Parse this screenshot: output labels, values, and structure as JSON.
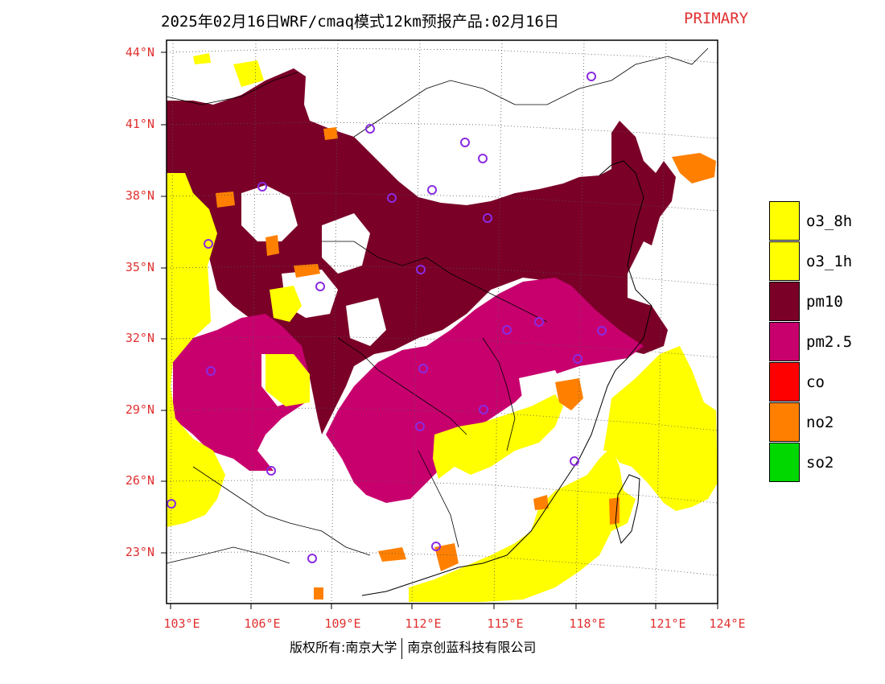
{
  "header": {
    "title": "2025年02月16日WRF/cmaq模式12km预报产品:02月16日",
    "tag": "PRIMARY"
  },
  "axes": {
    "lat_labels": [
      "44°N",
      "41°N",
      "38°N",
      "35°N",
      "32°N",
      "29°N",
      "26°N",
      "23°N"
    ],
    "lon_labels": [
      "103°E",
      "106°E",
      "109°E",
      "112°E",
      "115°E",
      "118°E",
      "121°E",
      "124°E"
    ]
  },
  "legend": {
    "items": [
      {
        "label": "o3_8h",
        "color": "#ffff00"
      },
      {
        "label": "o3_1h",
        "color": "#ffff00"
      },
      {
        "label": "pm10",
        "color": "#7a0028"
      },
      {
        "label": "pm2.5",
        "color": "#c8006e"
      },
      {
        "label": "co",
        "color": "#ff0000"
      },
      {
        "label": "no2",
        "color": "#ff8000"
      },
      {
        "label": "so2",
        "color": "#00d800"
      }
    ]
  },
  "footer": {
    "left": "版权所有:南京大学",
    "right": "南京创蓝科技有限公司"
  },
  "colors": {
    "o3": "#ffff00",
    "pm10": "#7a0028",
    "pm25": "#c8006e",
    "no2": "#ff8000",
    "station_marker": "#8a2be2",
    "label_red": "#e03030"
  }
}
